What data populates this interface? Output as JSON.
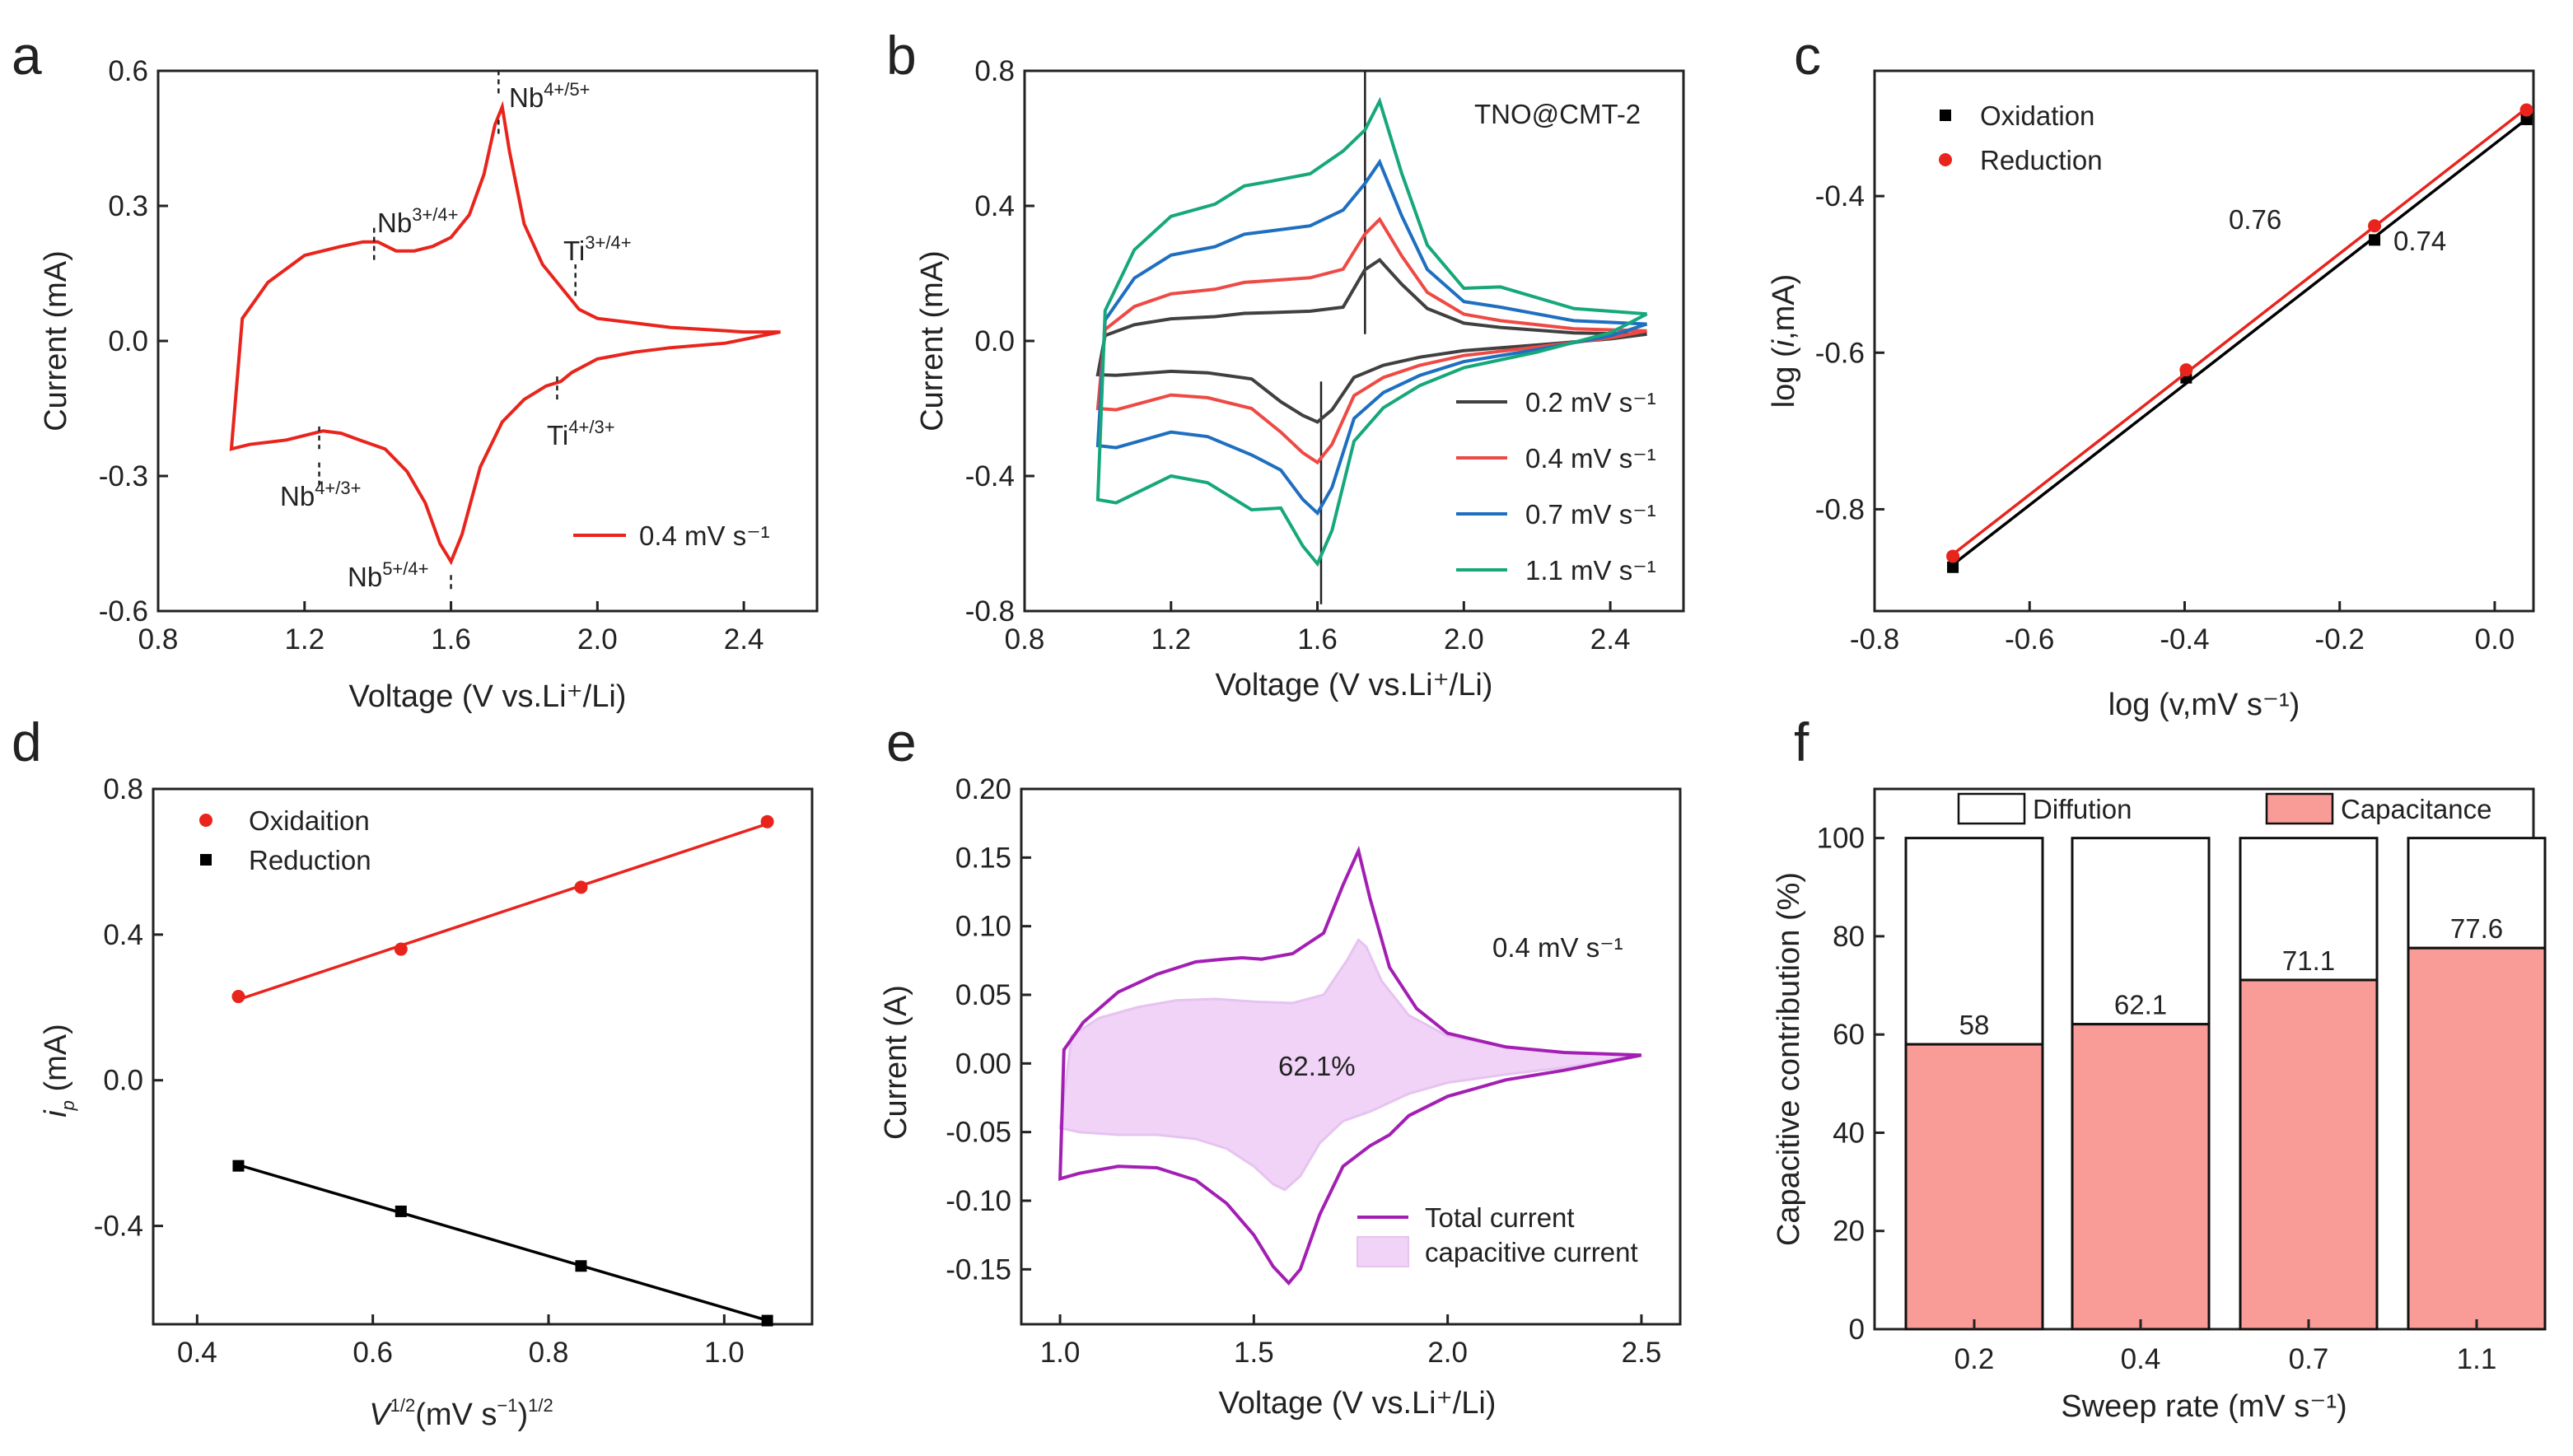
{
  "figure": {
    "panel_letters": [
      "a",
      "b",
      "c",
      "d",
      "e",
      "f"
    ]
  },
  "chart_data": [
    {
      "panel": "a",
      "type": "line",
      "title": "",
      "xlabel": "Voltage (V vs.Li⁺/Li)",
      "ylabel": "Current (mA)",
      "xlim": [
        0.8,
        2.6
      ],
      "ylim": [
        -0.6,
        0.6
      ],
      "xticks": [
        "0.8",
        "1.2",
        "1.6",
        "2.0",
        "2.4"
      ],
      "yticks": [
        "-0.6",
        "-0.3",
        "0.0",
        "0.3",
        "0.6"
      ],
      "series": [
        {
          "name": "0.4 mV s⁻¹",
          "color": "#e8241c",
          "points": [
            [
              2.5,
              0.02
            ],
            [
              2.4,
              0.02
            ],
            [
              2.3,
              0.025
            ],
            [
              2.2,
              0.03
            ],
            [
              2.1,
              0.04
            ],
            [
              2.0,
              0.05
            ],
            [
              1.95,
              0.07
            ],
            [
              1.9,
              0.12
            ],
            [
              1.85,
              0.17
            ],
            [
              1.8,
              0.26
            ],
            [
              1.76,
              0.42
            ],
            [
              1.74,
              0.52
            ],
            [
              1.72,
              0.48
            ],
            [
              1.69,
              0.37
            ],
            [
              1.65,
              0.28
            ],
            [
              1.6,
              0.23
            ],
            [
              1.55,
              0.21
            ],
            [
              1.5,
              0.2
            ],
            [
              1.45,
              0.2
            ],
            [
              1.4,
              0.22
            ],
            [
              1.36,
              0.22
            ],
            [
              1.3,
              0.21
            ],
            [
              1.2,
              0.19
            ],
            [
              1.1,
              0.13
            ],
            [
              1.03,
              0.05
            ],
            [
              1.0,
              -0.24
            ],
            [
              1.05,
              -0.23
            ],
            [
              1.15,
              -0.22
            ],
            [
              1.25,
              -0.2
            ],
            [
              1.3,
              -0.205
            ],
            [
              1.35,
              -0.22
            ],
            [
              1.42,
              -0.24
            ],
            [
              1.48,
              -0.29
            ],
            [
              1.53,
              -0.36
            ],
            [
              1.57,
              -0.45
            ],
            [
              1.6,
              -0.49
            ],
            [
              1.63,
              -0.43
            ],
            [
              1.68,
              -0.28
            ],
            [
              1.74,
              -0.18
            ],
            [
              1.8,
              -0.13
            ],
            [
              1.86,
              -0.1
            ],
            [
              1.9,
              -0.09
            ],
            [
              1.93,
              -0.07
            ],
            [
              2.0,
              -0.04
            ],
            [
              2.1,
              -0.025
            ],
            [
              2.2,
              -0.015
            ],
            [
              2.35,
              -0.005
            ],
            [
              2.5,
              0.02
            ]
          ]
        }
      ],
      "annotations": [
        {
          "base": "Nb",
          "sup": "4+/5+"
        },
        {
          "base": "Nb",
          "sup": "3+/4+"
        },
        {
          "base": "Ti",
          "sup": "3+/4+"
        },
        {
          "base": "Ti",
          "sup": "4+/3+"
        },
        {
          "base": "Nb",
          "sup": "4+/3+"
        },
        {
          "base": "Nb",
          "sup": "5+/4+"
        }
      ],
      "legend": [
        "0.4 mV s⁻¹"
      ]
    },
    {
      "panel": "b",
      "type": "line",
      "title": "TNO@CMT-2",
      "xlabel": "Voltage (V vs.Li⁺/Li)",
      "ylabel": "Current (mA)",
      "xlim": [
        0.8,
        2.6
      ],
      "ylim": [
        -0.8,
        0.8
      ],
      "xticks": [
        "0.8",
        "1.2",
        "1.6",
        "2.0",
        "2.4"
      ],
      "yticks": [
        "-0.8",
        "-0.4",
        "0.0",
        "0.4",
        "0.8"
      ],
      "series": [
        {
          "name": "0.2 mV s⁻¹",
          "color": "#404040",
          "peak_ox": 0.24,
          "peak_red": -0.24,
          "shoulder_ox": 0.08,
          "shoulder_red": -0.09,
          "start_neg": -0.1,
          "end": 0.02
        },
        {
          "name": "0.4 mV s⁻¹",
          "color": "#ee4a45",
          "peak_ox": 0.36,
          "peak_red": -0.36,
          "shoulder_ox": 0.17,
          "shoulder_red": -0.16,
          "start_neg": -0.2,
          "end": 0.03
        },
        {
          "name": "0.7 mV s⁻¹",
          "color": "#1e6fc0",
          "peak_ox": 0.53,
          "peak_red": -0.51,
          "shoulder_ox": 0.31,
          "shoulder_red": -0.27,
          "start_neg": -0.31,
          "end": 0.05
        },
        {
          "name": "1.1 mV s⁻¹",
          "color": "#16a77b",
          "peak_ox": 0.71,
          "peak_red": -0.66,
          "shoulder_ox": 0.45,
          "shoulder_red": -0.4,
          "start_neg": -0.47,
          "end": 0.08
        }
      ],
      "legend": [
        "0.2 mV s⁻¹",
        "0.4 mV s⁻¹",
        "0.7 mV s⁻¹",
        "1.1 mV s⁻¹"
      ]
    },
    {
      "panel": "c",
      "type": "scatter",
      "xlabel": "log (v,mV s⁻¹)",
      "ylabel_pre": "log (",
      "ylabel_i": "i",
      "ylabel_post": ",mA)",
      "xlim": [
        -0.8,
        0.05
      ],
      "ylim": [
        -0.93,
        -0.24
      ],
      "xticks": [
        "-0.8",
        "-0.6",
        "-0.4",
        "-0.2",
        "0.0"
      ],
      "yticks": [
        "-0.8",
        "-0.6",
        "-0.4"
      ],
      "series": [
        {
          "name": "Oxidation",
          "color": "#000000",
          "marker": "square",
          "x": [
            -0.699,
            -0.398,
            -0.155,
            0.041
          ],
          "y": [
            -0.874,
            -0.632,
            -0.456,
            -0.302
          ]
        },
        {
          "name": "Reduction",
          "color": "#e8241c",
          "marker": "circle",
          "x": [
            -0.699,
            -0.398,
            -0.155,
            0.041
          ],
          "y": [
            -0.86,
            -0.622,
            -0.438,
            -0.29
          ]
        }
      ],
      "slope_labels": [
        "0.76",
        "0.74"
      ],
      "legend": [
        "Oxidation",
        "Reduction"
      ]
    },
    {
      "panel": "d",
      "type": "scatter",
      "xlabel_base": "V",
      "xlabel_sup": "1/2",
      "xlabel_mid": "(mV s",
      "xlabel_midsup": "−1",
      "xlabel_end": ")",
      "xlabel_endsup": "1/2",
      "ylabel_base": "i",
      "ylabel_sub": "p",
      "ylabel_unit": " (mA)",
      "xlim": [
        0.35,
        1.1
      ],
      "ylim": [
        -0.67,
        0.8
      ],
      "xticks": [
        "0.4",
        "0.6",
        "0.8",
        "1.0"
      ],
      "yticks": [
        "-0.4",
        "0.0",
        "0.4",
        "0.8"
      ],
      "series": [
        {
          "name": "Oxidaition",
          "color": "#e8241c",
          "marker": "circle",
          "x": [
            0.447,
            0.632,
            0.837,
            1.049
          ],
          "y": [
            0.23,
            0.36,
            0.53,
            0.71
          ]
        },
        {
          "name": "Reduction",
          "color": "#000000",
          "marker": "square",
          "x": [
            0.447,
            0.632,
            0.837,
            1.049
          ],
          "y": [
            -0.235,
            -0.36,
            -0.51,
            -0.66
          ]
        }
      ],
      "legend": [
        "Oxidaition",
        "Reduction"
      ]
    },
    {
      "panel": "e",
      "type": "area",
      "xlabel": "Voltage (V vs.Li⁺/Li)",
      "ylabel": "Current (A)",
      "xlim": [
        0.9,
        2.6
      ],
      "ylim": [
        -0.19,
        0.2
      ],
      "xticks": [
        "1.0",
        "1.5",
        "2.0",
        "2.5"
      ],
      "yticks": [
        "-0.15",
        "-0.10",
        "-0.05",
        "0.00",
        "0.05",
        "0.10",
        "0.15",
        "0.20"
      ],
      "annotation_rate": "0.4 mV s⁻¹",
      "annotation_pct": "62.1%",
      "capacitive_percent": 62.1,
      "series": [
        {
          "name": "Total current",
          "color": "#a31fb3",
          "points": [
            [
              2.5,
              0.006
            ],
            [
              2.3,
              0.008
            ],
            [
              2.15,
              0.012
            ],
            [
              2.0,
              0.022
            ],
            [
              1.92,
              0.04
            ],
            [
              1.85,
              0.07
            ],
            [
              1.8,
              0.12
            ],
            [
              1.77,
              0.155
            ],
            [
              1.73,
              0.13
            ],
            [
              1.68,
              0.095
            ],
            [
              1.6,
              0.08
            ],
            [
              1.52,
              0.076
            ],
            [
              1.47,
              0.077
            ],
            [
              1.42,
              0.076
            ],
            [
              1.35,
              0.074
            ],
            [
              1.25,
              0.065
            ],
            [
              1.15,
              0.052
            ],
            [
              1.06,
              0.03
            ],
            [
              1.01,
              0.01
            ],
            [
              1.0,
              -0.084
            ],
            [
              1.05,
              -0.08
            ],
            [
              1.15,
              -0.075
            ],
            [
              1.25,
              -0.076
            ],
            [
              1.35,
              -0.085
            ],
            [
              1.43,
              -0.102
            ],
            [
              1.5,
              -0.125
            ],
            [
              1.55,
              -0.148
            ],
            [
              1.59,
              -0.16
            ],
            [
              1.62,
              -0.15
            ],
            [
              1.67,
              -0.11
            ],
            [
              1.73,
              -0.075
            ],
            [
              1.8,
              -0.06
            ],
            [
              1.85,
              -0.052
            ],
            [
              1.9,
              -0.038
            ],
            [
              2.0,
              -0.024
            ],
            [
              2.15,
              -0.012
            ],
            [
              2.3,
              -0.005
            ],
            [
              2.5,
              0.006
            ]
          ]
        },
        {
          "name": "capacitive current",
          "color": "#e6c3f0",
          "points": [
            [
              2.5,
              0.006
            ],
            [
              2.3,
              0.008
            ],
            [
              2.15,
              0.012
            ],
            [
              2.0,
              0.02
            ],
            [
              1.9,
              0.035
            ],
            [
              1.83,
              0.06
            ],
            [
              1.79,
              0.085
            ],
            [
              1.77,
              0.09
            ],
            [
              1.74,
              0.075
            ],
            [
              1.68,
              0.05
            ],
            [
              1.6,
              0.044
            ],
            [
              1.5,
              0.045
            ],
            [
              1.4,
              0.047
            ],
            [
              1.3,
              0.046
            ],
            [
              1.2,
              0.041
            ],
            [
              1.1,
              0.033
            ],
            [
              1.03,
              0.02
            ],
            [
              1.0,
              -0.047
            ],
            [
              1.05,
              -0.05
            ],
            [
              1.15,
              -0.052
            ],
            [
              1.25,
              -0.052
            ],
            [
              1.35,
              -0.055
            ],
            [
              1.43,
              -0.062
            ],
            [
              1.5,
              -0.075
            ],
            [
              1.55,
              -0.088
            ],
            [
              1.58,
              -0.092
            ],
            [
              1.62,
              -0.082
            ],
            [
              1.67,
              -0.058
            ],
            [
              1.73,
              -0.042
            ],
            [
              1.8,
              -0.035
            ],
            [
              1.9,
              -0.022
            ],
            [
              2.0,
              -0.014
            ],
            [
              2.15,
              -0.008
            ],
            [
              2.3,
              -0.003
            ],
            [
              2.5,
              0.006
            ]
          ]
        }
      ],
      "legend": [
        "Total current",
        "capacitive current"
      ]
    },
    {
      "panel": "f",
      "type": "bar",
      "xlabel": "Sweep rate (mV s⁻¹)",
      "ylabel": "Capacitive contribution (%)",
      "ylim": [
        0,
        110
      ],
      "yticks": [
        "0",
        "20",
        "40",
        "60",
        "80",
        "100"
      ],
      "categories": [
        "0.2",
        "0.4",
        "0.7",
        "1.1"
      ],
      "series": [
        {
          "name": "Capacitance",
          "color": "#f99b97",
          "values": [
            58,
            62.1,
            71.1,
            77.6
          ]
        },
        {
          "name": "Diffution",
          "color": "#ffffff",
          "values": [
            42,
            37.9,
            28.9,
            22.4
          ]
        }
      ],
      "value_labels": [
        "58",
        "62.1",
        "71.1",
        "77.6"
      ],
      "legend": [
        "Diffution",
        "Capacitance"
      ]
    }
  ]
}
